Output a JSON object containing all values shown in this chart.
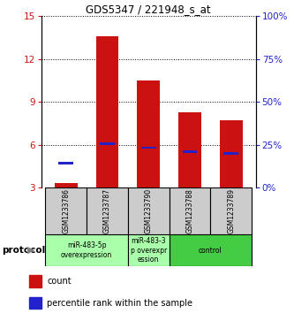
{
  "title": "GDS5347 / 221948_s_at",
  "samples": [
    "GSM1233786",
    "GSM1233787",
    "GSM1233790",
    "GSM1233788",
    "GSM1233789"
  ],
  "red_bar_tops": [
    3.35,
    13.6,
    10.5,
    8.3,
    7.7
  ],
  "blue_marker_vals": [
    4.7,
    6.1,
    5.8,
    5.5,
    5.4
  ],
  "bar_bottom": 3.0,
  "ylim_left": [
    3,
    15
  ],
  "ylim_right": [
    0,
    100
  ],
  "yticks_left": [
    3,
    6,
    9,
    12,
    15
  ],
  "yticks_right": [
    0,
    25,
    50,
    75,
    100
  ],
  "ytick_labels_right": [
    "0%",
    "25%",
    "50%",
    "75%",
    "100%"
  ],
  "bar_color": "#cc1111",
  "blue_color": "#2222cc",
  "protocol_groups": [
    {
      "label": "miR-483-5p\noverexpression",
      "samples": [
        0,
        1
      ],
      "color": "#aaffaa"
    },
    {
      "label": "miR-483-3\np overexpr\nession",
      "samples": [
        2
      ],
      "color": "#aaffaa"
    },
    {
      "label": "control",
      "samples": [
        3,
        4
      ],
      "color": "#44cc44"
    }
  ],
  "sample_box_color": "#cccccc",
  "bar_width": 0.55,
  "protocol_label": "protocol"
}
